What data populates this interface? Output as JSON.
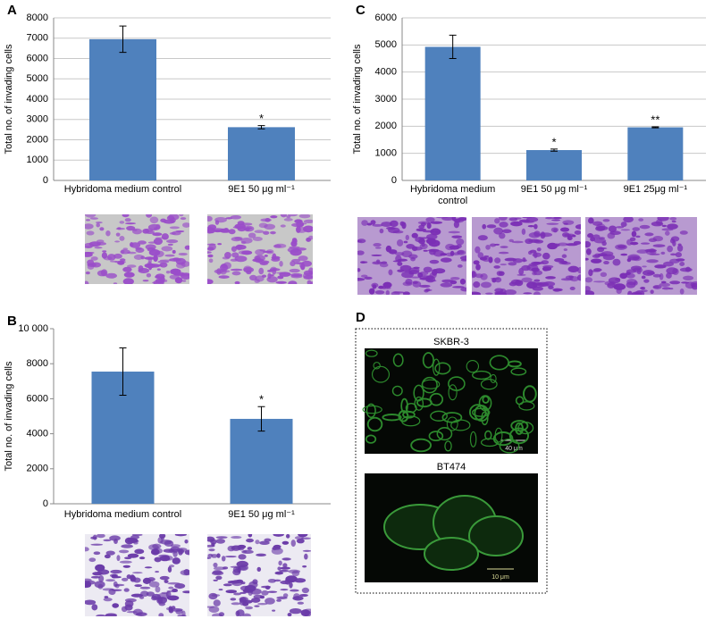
{
  "chart_data": [
    {
      "type": "bar",
      "panel": "A",
      "y_label": "Total no. of invading cells",
      "color": "#4f81bd",
      "grid": true,
      "categories": [
        "Hybridoma medium control",
        "9E1 50 μg ml⁻¹"
      ],
      "values": [
        6950,
        2620
      ],
      "errors": [
        650,
        80
      ],
      "significance": [
        null,
        "*"
      ],
      "ylim": [
        0,
        8000
      ],
      "yticks": [
        0,
        1000,
        2000,
        3000,
        4000,
        5000,
        6000,
        7000,
        8000
      ]
    },
    {
      "type": "bar",
      "panel": "B",
      "y_label": "Total no. of invading cells",
      "color": "#4f81bd",
      "grid": false,
      "categories": [
        "Hybridoma medium control",
        "9E1 50 μg ml⁻¹"
      ],
      "values": [
        7550,
        4850
      ],
      "errors": [
        1350,
        700
      ],
      "significance": [
        null,
        "*"
      ],
      "ylim": [
        0,
        10000
      ],
      "yticks": [
        0,
        2000,
        4000,
        6000,
        8000,
        {
          "value": 10000,
          "label": "10 000"
        }
      ]
    },
    {
      "type": "bar",
      "panel": "C",
      "y_label": "Total no. of invading cells",
      "color": "#4f81bd",
      "grid": true,
      "categories": [
        "Hybridoma medium control",
        "9E1 50 μg ml⁻¹",
        "9E1 25μg ml⁻¹"
      ],
      "values": [
        4930,
        1120,
        1960
      ],
      "errors": [
        430,
        40,
        20
      ],
      "significance": [
        null,
        "*",
        "**"
      ],
      "ylim": [
        0,
        6000
      ],
      "yticks": [
        0,
        1000,
        2000,
        3000,
        4000,
        5000,
        6000
      ]
    }
  ],
  "panel_d": {
    "label": "D",
    "images": [
      {
        "title": "SKBR-3",
        "scale": "40 μm"
      },
      {
        "title": "BT474",
        "scale": "10 μm"
      }
    ]
  }
}
